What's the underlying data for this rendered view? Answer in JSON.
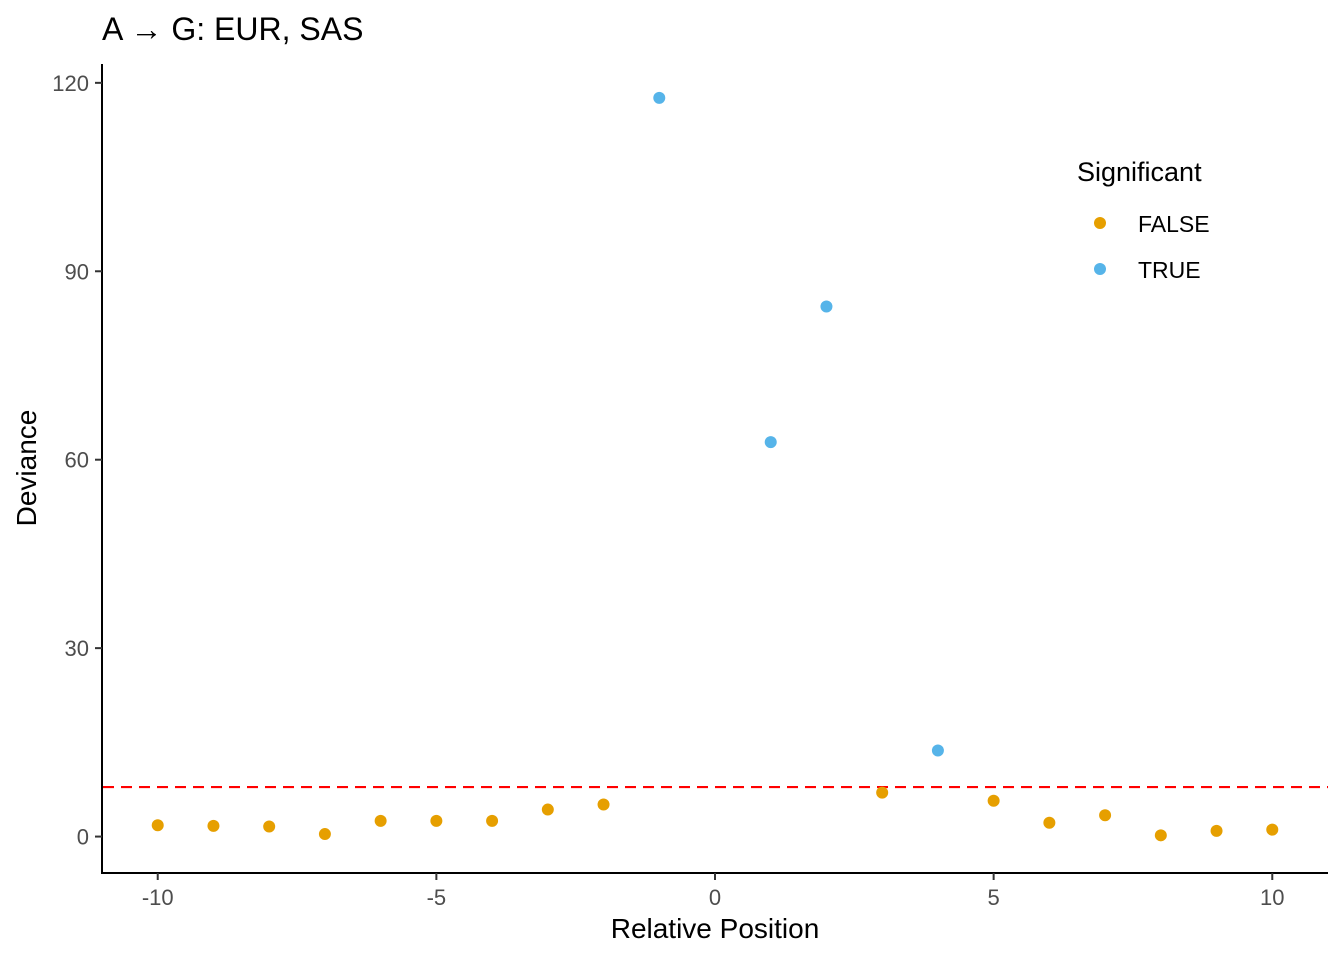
{
  "chart_data": {
    "type": "scatter",
    "title": "A → G: EUR, SAS",
    "xlabel": "Relative Position",
    "ylabel": "Deviance",
    "xlim": [
      -11,
      11
    ],
    "ylim": [
      -5.8,
      123
    ],
    "x_ticks": [
      -10,
      -5,
      0,
      5,
      10
    ],
    "x_tick_labels": [
      "-10",
      "-5",
      "0",
      "5",
      "10"
    ],
    "y_ticks": [
      0,
      30,
      60,
      90,
      120
    ],
    "y_tick_labels": [
      "0",
      "30",
      "60",
      "90",
      "120"
    ],
    "grid": false,
    "threshold": {
      "y": 7.88,
      "color": "#ff0000",
      "style": "dashed"
    },
    "legend": {
      "title": "Significant",
      "placement": "right-inside",
      "entries": [
        {
          "label": "FALSE",
          "color": "#E69F00"
        },
        {
          "label": "TRUE",
          "color": "#56B4E9"
        }
      ]
    },
    "series": [
      {
        "name": "FALSE",
        "color": "#E69F00",
        "points": [
          {
            "x": -10,
            "y": 1.8
          },
          {
            "x": -9,
            "y": 1.7
          },
          {
            "x": -8,
            "y": 1.6
          },
          {
            "x": -7,
            "y": 0.4
          },
          {
            "x": -6,
            "y": 2.5
          },
          {
            "x": -5,
            "y": 2.5
          },
          {
            "x": -4,
            "y": 2.5
          },
          {
            "x": -3,
            "y": 4.3
          },
          {
            "x": -2,
            "y": 5.1
          },
          {
            "x": 3,
            "y": 7.0
          },
          {
            "x": 5,
            "y": 5.7
          },
          {
            "x": 6,
            "y": 2.2
          },
          {
            "x": 7,
            "y": 3.4
          },
          {
            "x": 8,
            "y": 0.2
          },
          {
            "x": 9,
            "y": 0.9
          },
          {
            "x": 10,
            "y": 1.1
          }
        ]
      },
      {
        "name": "TRUE",
        "color": "#56B4E9",
        "points": [
          {
            "x": -1,
            "y": 117.6
          },
          {
            "x": 1,
            "y": 62.8
          },
          {
            "x": 2,
            "y": 84.4
          },
          {
            "x": 4,
            "y": 13.7
          }
        ]
      }
    ]
  }
}
